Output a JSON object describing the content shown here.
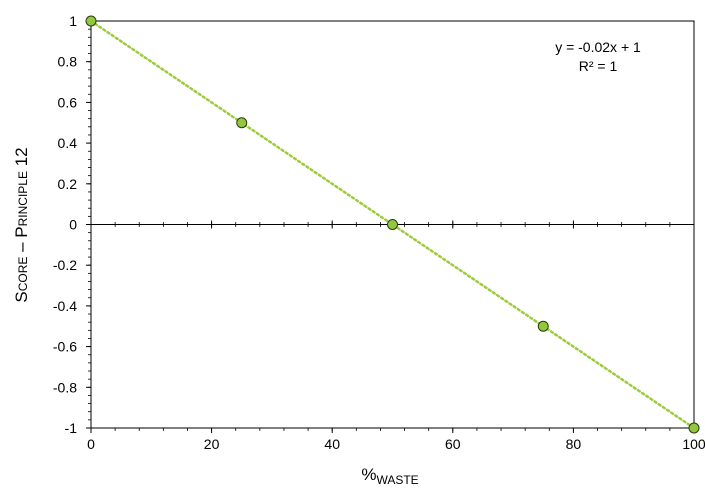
{
  "chart_data": {
    "type": "scatter",
    "x": [
      0,
      25,
      50,
      75,
      100
    ],
    "y": [
      1,
      0.5,
      0,
      -0.5,
      -1
    ],
    "xlim": [
      0,
      100
    ],
    "ylim": [
      -1,
      1
    ],
    "xticks": [
      0,
      20,
      40,
      60,
      80,
      100
    ],
    "yticks": [
      -1,
      -0.8,
      -0.6,
      -0.4,
      -0.2,
      0,
      0.2,
      0.4,
      0.6,
      0.8,
      1
    ],
    "xlabel_main": "%",
    "xlabel_sub": "WASTE",
    "ylabel_parts": [
      "S",
      "CORE",
      " – P",
      "RINCIPLE",
      " 12"
    ],
    "trendline": {
      "slope": -0.02,
      "intercept": 1
    },
    "equation": "y = -0.02x + 1",
    "r_squared": "R² = 1",
    "grid": false,
    "colors": {
      "marker_fill": "#92c83e",
      "marker_stroke": "#2f3a10",
      "trendline": "#9ccc3c"
    }
  }
}
